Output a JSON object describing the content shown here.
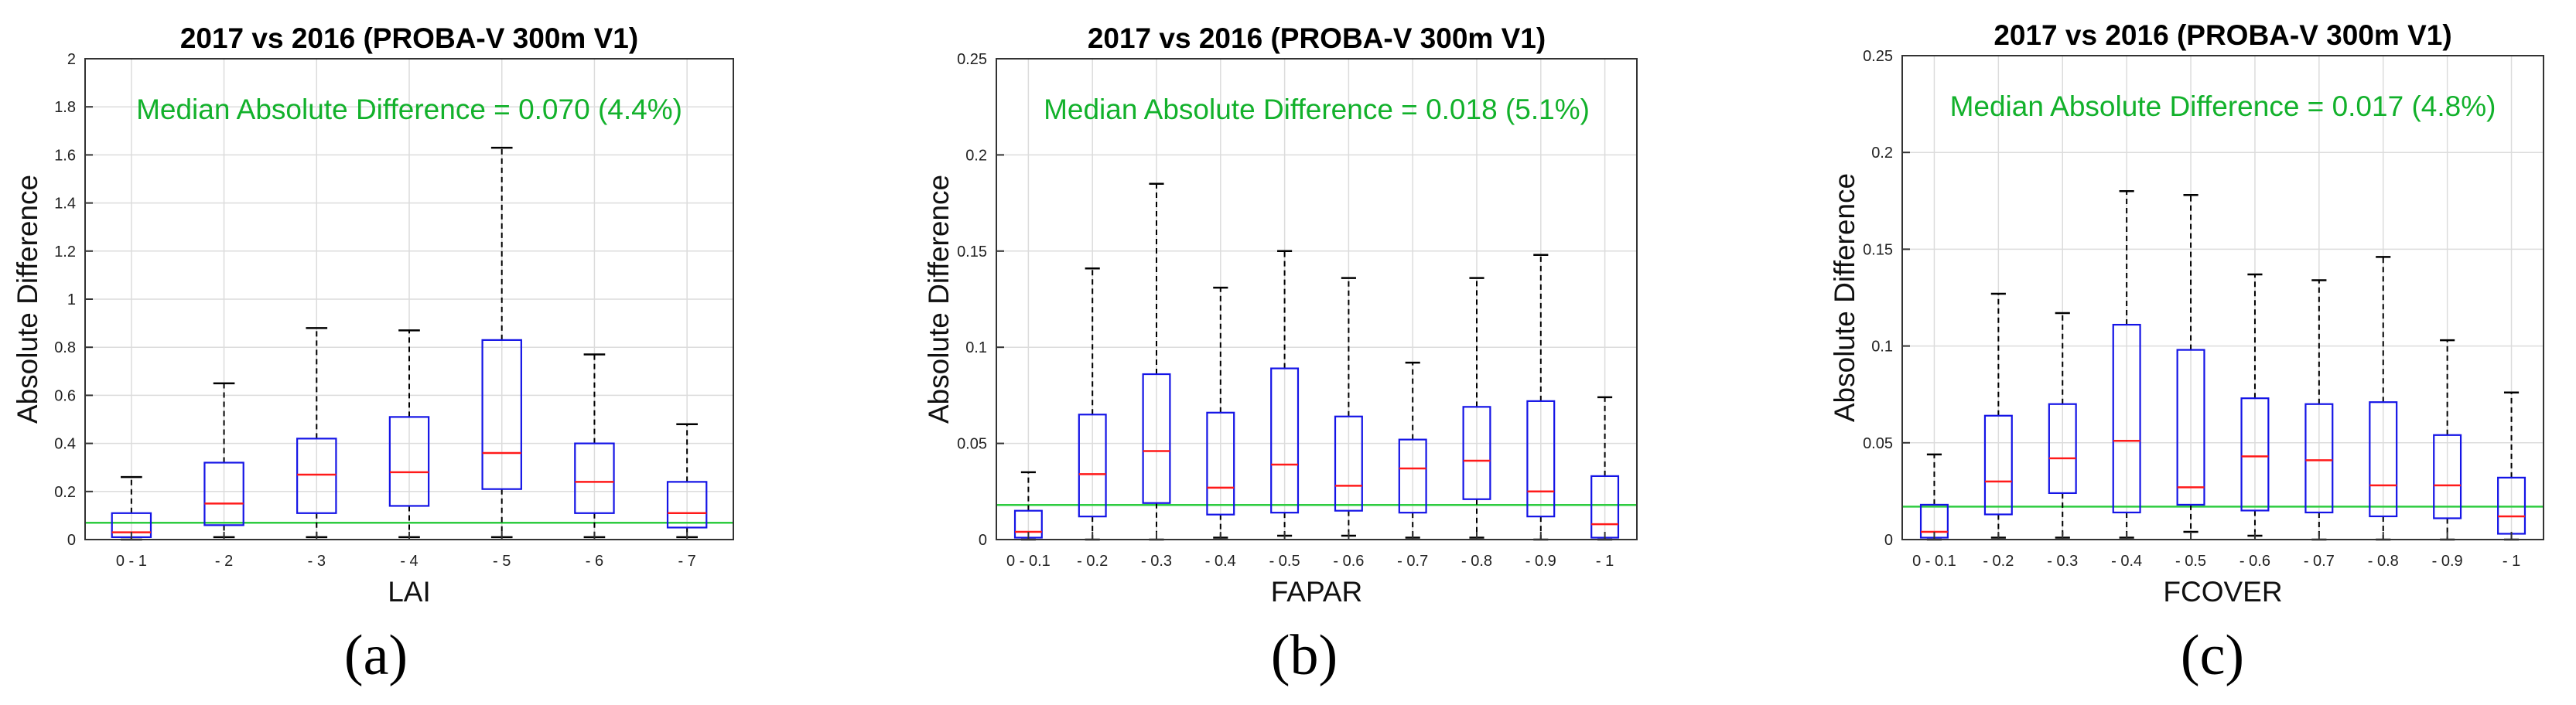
{
  "chart_data": [
    {
      "type": "box",
      "panel_label": "(a)",
      "title": "2017 vs 2016 (PROBA-V 300m V1)",
      "xlabel": "LAI",
      "ylabel": "Absolute Difference",
      "ylim": [
        0,
        2
      ],
      "yticks": [
        0,
        0.2,
        0.4,
        0.6,
        0.8,
        1,
        1.2,
        1.4,
        1.6,
        1.8,
        2
      ],
      "ytick_labels": [
        "0",
        "0.2",
        "0.4",
        "0.6",
        "0.8",
        "1",
        "1.2",
        "1.4",
        "1.6",
        "1.8",
        "2"
      ],
      "categories": [
        "0 - 1",
        "- 2",
        "- 3",
        "- 4",
        "- 5",
        "- 6",
        "- 7"
      ],
      "boxes": [
        {
          "whisker_low": 0.0,
          "q1": 0.01,
          "median": 0.03,
          "q3": 0.11,
          "whisker_high": 0.26
        },
        {
          "whisker_low": 0.01,
          "q1": 0.06,
          "median": 0.15,
          "q3": 0.32,
          "whisker_high": 0.65
        },
        {
          "whisker_low": 0.01,
          "q1": 0.11,
          "median": 0.27,
          "q3": 0.42,
          "whisker_high": 0.88
        },
        {
          "whisker_low": 0.01,
          "q1": 0.14,
          "median": 0.28,
          "q3": 0.51,
          "whisker_high": 0.87
        },
        {
          "whisker_low": 0.01,
          "q1": 0.21,
          "median": 0.36,
          "q3": 0.83,
          "whisker_high": 1.63
        },
        {
          "whisker_low": 0.01,
          "q1": 0.11,
          "median": 0.24,
          "q3": 0.4,
          "whisker_high": 0.77
        },
        {
          "whisker_low": 0.01,
          "q1": 0.05,
          "median": 0.11,
          "q3": 0.24,
          "whisker_high": 0.48
        }
      ],
      "reference_line": 0.07,
      "annotation": "Median Absolute Difference = 0.070 (4.4%)"
    },
    {
      "type": "box",
      "panel_label": "(b)",
      "title": "2017 vs 2016 (PROBA-V 300m V1)",
      "xlabel": "FAPAR",
      "ylabel": "Absolute Difference",
      "ylim": [
        0,
        0.25
      ],
      "yticks": [
        0,
        0.05,
        0.1,
        0.15,
        0.2,
        0.25
      ],
      "ytick_labels": [
        "0",
        "0.05",
        "0.1",
        "0.15",
        "0.2",
        "0.25"
      ],
      "categories": [
        "0 - 0.1",
        "- 0.2",
        "- 0.3",
        "- 0.4",
        "- 0.5",
        "- 0.6",
        "- 0.7",
        "- 0.8",
        "- 0.9",
        "- 1"
      ],
      "boxes": [
        {
          "whisker_low": 0.0,
          "q1": 0.001,
          "median": 0.004,
          "q3": 0.015,
          "whisker_high": 0.035
        },
        {
          "whisker_low": 0.0,
          "q1": 0.012,
          "median": 0.034,
          "q3": 0.065,
          "whisker_high": 0.141
        },
        {
          "whisker_low": 0.0,
          "q1": 0.019,
          "median": 0.046,
          "q3": 0.086,
          "whisker_high": 0.185
        },
        {
          "whisker_low": 0.001,
          "q1": 0.013,
          "median": 0.027,
          "q3": 0.066,
          "whisker_high": 0.131
        },
        {
          "whisker_low": 0.002,
          "q1": 0.014,
          "median": 0.039,
          "q3": 0.089,
          "whisker_high": 0.15
        },
        {
          "whisker_low": 0.002,
          "q1": 0.015,
          "median": 0.028,
          "q3": 0.064,
          "whisker_high": 0.136
        },
        {
          "whisker_low": 0.001,
          "q1": 0.014,
          "median": 0.037,
          "q3": 0.052,
          "whisker_high": 0.092
        },
        {
          "whisker_low": 0.001,
          "q1": 0.021,
          "median": 0.041,
          "q3": 0.069,
          "whisker_high": 0.136
        },
        {
          "whisker_low": 0.0,
          "q1": 0.012,
          "median": 0.025,
          "q3": 0.072,
          "whisker_high": 0.148
        },
        {
          "whisker_low": 0.0,
          "q1": 0.001,
          "median": 0.008,
          "q3": 0.033,
          "whisker_high": 0.074
        }
      ],
      "reference_line": 0.018,
      "annotation": "Median Absolute Difference = 0.018 (5.1%)"
    },
    {
      "type": "box",
      "panel_label": "(c)",
      "title": "2017 vs 2016 (PROBA-V 300m V1)",
      "xlabel": "FCOVER",
      "ylabel": "Absolute Difference",
      "ylim": [
        0,
        0.25
      ],
      "yticks": [
        0,
        0.05,
        0.1,
        0.15,
        0.2,
        0.25
      ],
      "ytick_labels": [
        "0",
        "0.05",
        "0.1",
        "0.15",
        "0.2",
        "0.25"
      ],
      "categories": [
        "0 - 0.1",
        "- 0.2",
        "- 0.3",
        "- 0.4",
        "- 0.5",
        "- 0.6",
        "- 0.7",
        "- 0.8",
        "- 0.9",
        "- 1"
      ],
      "boxes": [
        {
          "whisker_low": 0.0,
          "q1": 0.001,
          "median": 0.004,
          "q3": 0.018,
          "whisker_high": 0.044
        },
        {
          "whisker_low": 0.001,
          "q1": 0.013,
          "median": 0.03,
          "q3": 0.064,
          "whisker_high": 0.127
        },
        {
          "whisker_low": 0.001,
          "q1": 0.024,
          "median": 0.042,
          "q3": 0.07,
          "whisker_high": 0.117
        },
        {
          "whisker_low": 0.001,
          "q1": 0.014,
          "median": 0.051,
          "q3": 0.111,
          "whisker_high": 0.18
        },
        {
          "whisker_low": 0.004,
          "q1": 0.018,
          "median": 0.027,
          "q3": 0.098,
          "whisker_high": 0.178
        },
        {
          "whisker_low": 0.002,
          "q1": 0.015,
          "median": 0.043,
          "q3": 0.073,
          "whisker_high": 0.137
        },
        {
          "whisker_low": 0.0,
          "q1": 0.014,
          "median": 0.041,
          "q3": 0.07,
          "whisker_high": 0.134
        },
        {
          "whisker_low": 0.0,
          "q1": 0.012,
          "median": 0.028,
          "q3": 0.071,
          "whisker_high": 0.146
        },
        {
          "whisker_low": 0.0,
          "q1": 0.011,
          "median": 0.028,
          "q3": 0.054,
          "whisker_high": 0.103
        },
        {
          "whisker_low": 0.0,
          "q1": 0.003,
          "median": 0.012,
          "q3": 0.032,
          "whisker_high": 0.076
        }
      ],
      "reference_line": 0.017,
      "annotation": "Median Absolute Difference = 0.017 (4.8%)"
    }
  ],
  "colors": {
    "box": "#1414e6",
    "median": "#ff1a1a",
    "whisker": "#000000",
    "reference": "#2ecc40",
    "annotation": "#12b12b",
    "grid": "#dcdcdc",
    "axis": "#333333"
  }
}
